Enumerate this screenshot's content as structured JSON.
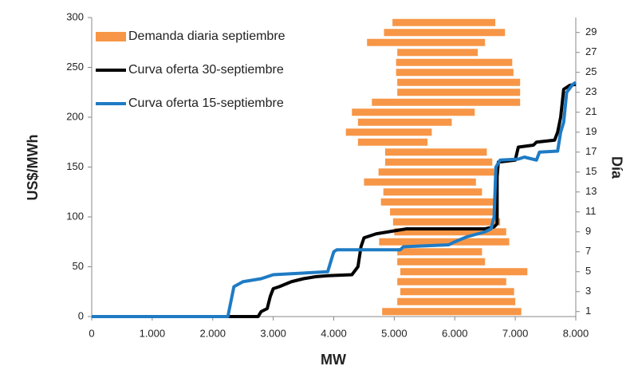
{
  "chart_data": {
    "type": "combo",
    "xlabel": "MW",
    "ylabel": "US$/MWh",
    "y2label": "Día",
    "xlim": [
      0,
      8000
    ],
    "xticks": [
      0,
      {
        "value": 1000,
        "label": "1.000"
      },
      {
        "value": 2000,
        "label": "2.000"
      },
      {
        "value": 3000,
        "label": "3.000"
      },
      {
        "value": 4000,
        "label": "4.000"
      },
      {
        "value": 5000,
        "label": "5.000"
      },
      {
        "value": 6000,
        "label": "6.000"
      },
      {
        "value": 7000,
        "label": "7.000"
      },
      {
        "value": 8000,
        "label": "8.000"
      }
    ],
    "ylim": [
      0,
      300
    ],
    "yticks": [
      0,
      50,
      100,
      150,
      200,
      250,
      300
    ],
    "y2lim": [
      0.5,
      30.5
    ],
    "y2ticks": [
      1,
      3,
      5,
      7,
      9,
      11,
      13,
      15,
      17,
      19,
      21,
      23,
      25,
      27,
      29
    ],
    "series": [
      {
        "name": "Demanda diaria septiembre",
        "type": "bar",
        "color": "#f79646",
        "axis": "y2",
        "days": [
          1,
          2,
          3,
          4,
          5,
          6,
          7,
          8,
          9,
          10,
          11,
          12,
          13,
          14,
          15,
          16,
          17,
          18,
          19,
          20,
          21,
          22,
          23,
          24,
          25,
          26,
          27,
          28,
          29,
          30
        ],
        "start": [
          4800,
          5050,
          5100,
          5050,
          5100,
          5050,
          5050,
          4750,
          5000,
          4980,
          4930,
          4780,
          4820,
          4500,
          4740,
          4850,
          4850,
          4400,
          4200,
          4400,
          4300,
          4630,
          5050,
          5050,
          5030,
          5030,
          5050,
          4550,
          4830,
          4970
        ],
        "end": [
          7100,
          7000,
          6980,
          6850,
          7200,
          6500,
          6450,
          6900,
          6850,
          6750,
          6700,
          6720,
          6450,
          6350,
          6650,
          6620,
          6530,
          5550,
          5620,
          5950,
          6330,
          7080,
          7080,
          7080,
          6970,
          6950,
          6380,
          6500,
          6830,
          6670
        ]
      },
      {
        "name": "Curva oferta 30-septiembre",
        "type": "line",
        "color": "#000000",
        "x": [
          0,
          2750,
          2800,
          2900,
          2950,
          3000,
          3100,
          3300,
          3500,
          3700,
          3900,
          4300,
          4400,
          4450,
          4500,
          4700,
          5000,
          5200,
          6500,
          6650,
          6700,
          6700,
          6720,
          7000,
          7050,
          7300,
          7350,
          7650,
          7700,
          7750,
          7800,
          7900,
          8000
        ],
        "values": [
          0,
          0,
          5,
          8,
          20,
          28,
          30,
          35,
          38,
          40,
          41,
          42,
          50,
          70,
          79,
          83,
          86,
          88,
          88,
          90,
          93,
          140,
          155,
          157,
          170,
          172,
          175,
          177,
          185,
          200,
          228,
          232,
          233
        ]
      },
      {
        "name": "Curva oferta 15-septiembre",
        "type": "line",
        "color": "#1f7bc4",
        "x": [
          0,
          2250,
          2300,
          2350,
          2500,
          2700,
          2800,
          3000,
          3300,
          3900,
          3950,
          4000,
          4050,
          5100,
          5150,
          5900,
          6000,
          6200,
          6500,
          6600,
          6650,
          6680,
          6750,
          7050,
          7150,
          7350,
          7400,
          7700,
          7750,
          7800,
          7850,
          7950,
          8000
        ],
        "values": [
          0,
          0,
          15,
          30,
          35,
          37,
          38,
          42,
          43,
          45,
          55,
          65,
          67,
          67,
          70,
          72,
          75,
          80,
          85,
          88,
          100,
          150,
          157,
          158,
          160,
          157,
          165,
          166,
          185,
          195,
          225,
          233,
          235
        ]
      }
    ]
  }
}
